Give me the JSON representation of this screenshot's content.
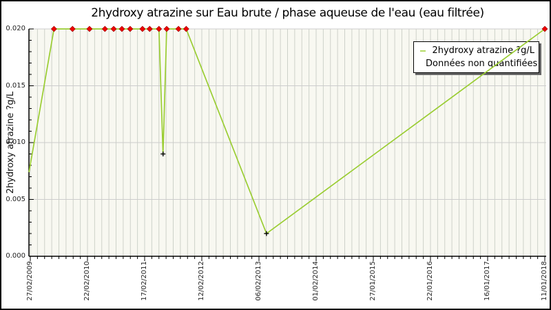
{
  "figure": {
    "title": "2hydroxy atrazine sur Eau brute / phase aqueuse de l'eau (eau filtrée)",
    "ylabel": "2hydroxy atrazine ?g/L"
  },
  "legend": {
    "position": "top-right",
    "items": [
      {
        "label": "2hydroxy atrazine ?g/L",
        "marker": "black-plus",
        "line_color": "#9ACD32"
      },
      {
        "label": "Données non quantifiées",
        "marker": "red-diamond",
        "line_color": "#7F8C5A"
      }
    ]
  },
  "chart_data": {
    "type": "line",
    "title": "2hydroxy atrazine sur Eau brute / phase aqueuse de l'eau (eau filtrée)",
    "xlabel": "",
    "ylabel": "2hydroxy atrazine ?g/L",
    "ylim": [
      0,
      0.02
    ],
    "ytick_labels": [
      "0.000",
      "0.005",
      "0.010",
      "0.015",
      "0.020"
    ],
    "ytick_values": [
      0,
      0.005,
      0.01,
      0.015,
      0.02
    ],
    "xticks": [
      "27/02/2009",
      "22/02/2010",
      "17/02/2011",
      "12/02/2012",
      "06/02/2013",
      "01/02/2014",
      "27/01/2015",
      "22/01/2016",
      "16/01/2017",
      "11/01/2018"
    ],
    "grid": "vertical minor gridlines on, horizontal major gridlines on",
    "legend_position": "top-right",
    "colors": {
      "plot_bg": "#f8f8f1",
      "grid_v": "#cdd1c9",
      "grid_h": "#cccccc",
      "line_green": "#9ACD32",
      "marker_red": "#ee0000",
      "marker_red_edge": "#990000",
      "marker_black": "#000000",
      "axis": "#000000"
    },
    "series": [
      {
        "name": "2hydroxy atrazine ?g/L",
        "color": "#9ACD32",
        "points": [
          {
            "f": -0.0025,
            "value": 0.0074,
            "marker": "none",
            "date_est": "~27/02/2009"
          },
          {
            "f": 0.046,
            "value": 0.02,
            "marker": "red-diamond",
            "date_est": "~08/2009"
          },
          {
            "f": 0.082,
            "value": 0.02,
            "marker": "red-diamond",
            "date_est": "~11/2009"
          },
          {
            "f": 0.115,
            "value": 0.02,
            "marker": "red-diamond",
            "date_est": "~03/2010"
          },
          {
            "f": 0.145,
            "value": 0.02,
            "marker": "red-diamond",
            "date_est": "~06/2010"
          },
          {
            "f": 0.162,
            "value": 0.02,
            "marker": "red-diamond",
            "date_est": "~08/2010"
          },
          {
            "f": 0.178,
            "value": 0.02,
            "marker": "red-diamond",
            "date_est": "~10/2010"
          },
          {
            "f": 0.194,
            "value": 0.02,
            "marker": "red-diamond",
            "date_est": "~11/2010"
          },
          {
            "f": 0.218,
            "value": 0.02,
            "marker": "red-diamond",
            "date_est": "~02/2011"
          },
          {
            "f": 0.232,
            "value": 0.02,
            "marker": "red-diamond",
            "date_est": "~04/2011"
          },
          {
            "f": 0.25,
            "value": 0.02,
            "marker": "red-diamond",
            "date_est": "~06/2011"
          },
          {
            "f": 0.258,
            "value": 0.009,
            "marker": "black-plus",
            "date_est": "~06/2011"
          },
          {
            "f": 0.265,
            "value": 0.02,
            "marker": "red-diamond",
            "date_est": "~07/2011"
          },
          {
            "f": 0.288,
            "value": 0.02,
            "marker": "red-diamond",
            "date_est": "~10/2011"
          },
          {
            "f": 0.303,
            "value": 0.02,
            "marker": "red-diamond",
            "date_est": "~11/2011"
          },
          {
            "f": 0.459,
            "value": 0.002,
            "marker": "black-plus",
            "date_est": "~04/2013"
          },
          {
            "f": 1.0,
            "value": 0.02,
            "marker": "red-diamond",
            "date_est": "11/01/2018"
          }
        ]
      }
    ]
  }
}
